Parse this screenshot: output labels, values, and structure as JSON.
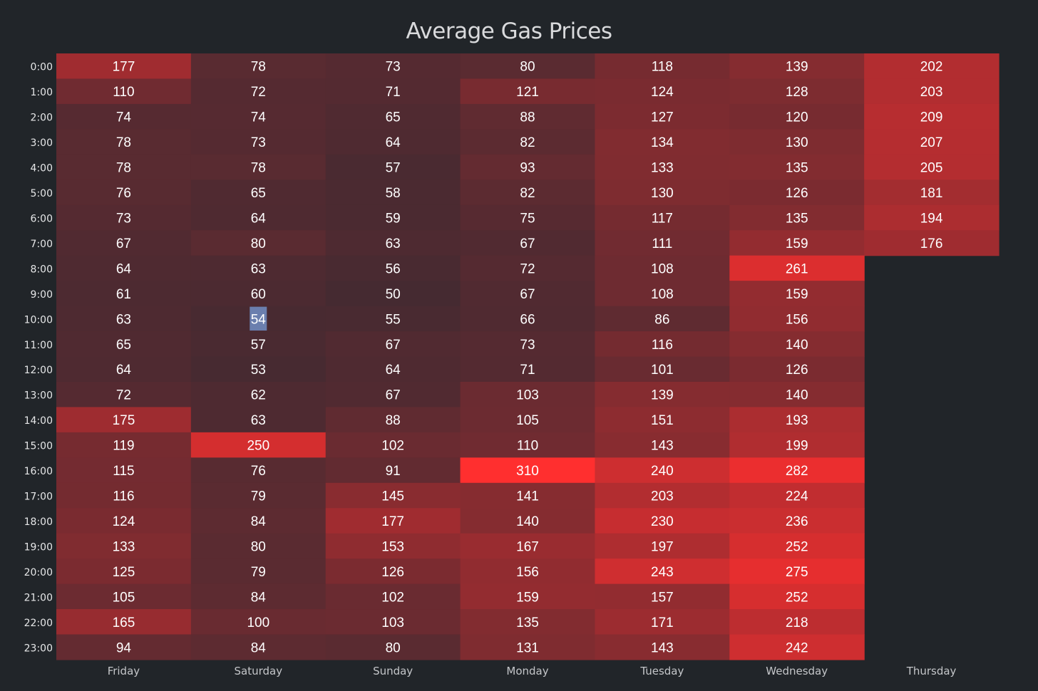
{
  "chart_data": {
    "type": "heatmap",
    "title": "Average Gas Prices",
    "xlabel": "",
    "ylabel": "",
    "x_categories": [
      "Friday",
      "Saturday",
      "Sunday",
      "Monday",
      "Tuesday",
      "Wednesday",
      "Thursday"
    ],
    "y_categories": [
      "0:00",
      "1:00",
      "2:00",
      "3:00",
      "4:00",
      "5:00",
      "6:00",
      "7:00",
      "8:00",
      "9:00",
      "10:00",
      "11:00",
      "12:00",
      "13:00",
      "14:00",
      "15:00",
      "16:00",
      "17:00",
      "18:00",
      "19:00",
      "20:00",
      "21:00",
      "22:00",
      "23:00"
    ],
    "values": [
      [
        177,
        78,
        73,
        80,
        118,
        139,
        202
      ],
      [
        110,
        72,
        71,
        121,
        124,
        128,
        203
      ],
      [
        74,
        74,
        65,
        88,
        127,
        120,
        209
      ],
      [
        78,
        73,
        64,
        82,
        134,
        130,
        207
      ],
      [
        78,
        78,
        57,
        93,
        133,
        135,
        205
      ],
      [
        76,
        65,
        58,
        82,
        130,
        126,
        181
      ],
      [
        73,
        64,
        59,
        75,
        117,
        135,
        194
      ],
      [
        67,
        80,
        63,
        67,
        111,
        159,
        176
      ],
      [
        64,
        63,
        56,
        72,
        108,
        261,
        null
      ],
      [
        61,
        60,
        50,
        67,
        108,
        159,
        null
      ],
      [
        63,
        54,
        55,
        66,
        86,
        156,
        null
      ],
      [
        65,
        57,
        67,
        73,
        116,
        140,
        null
      ],
      [
        64,
        53,
        64,
        71,
        101,
        126,
        null
      ],
      [
        72,
        62,
        67,
        103,
        139,
        140,
        null
      ],
      [
        175,
        63,
        88,
        105,
        151,
        193,
        null
      ],
      [
        119,
        250,
        102,
        110,
        143,
        199,
        null
      ],
      [
        115,
        76,
        91,
        310,
        240,
        282,
        null
      ],
      [
        116,
        79,
        145,
        141,
        203,
        224,
        null
      ],
      [
        124,
        84,
        177,
        140,
        230,
        236,
        null
      ],
      [
        133,
        80,
        153,
        167,
        197,
        252,
        null
      ],
      [
        125,
        79,
        126,
        156,
        243,
        275,
        null
      ],
      [
        105,
        84,
        102,
        159,
        157,
        252,
        null
      ],
      [
        165,
        100,
        103,
        135,
        171,
        218,
        null
      ],
      [
        94,
        84,
        80,
        131,
        143,
        242,
        null
      ]
    ],
    "value_range": [
      50,
      310
    ],
    "color_scale": [
      "#452a31",
      "#ff2f2f"
    ],
    "background_color": "#212529",
    "highlighted_cell": {
      "row": "10:00",
      "column": "Saturday",
      "value": 54,
      "color": "#6b7fae"
    },
    "legend": "none",
    "grid": false
  }
}
